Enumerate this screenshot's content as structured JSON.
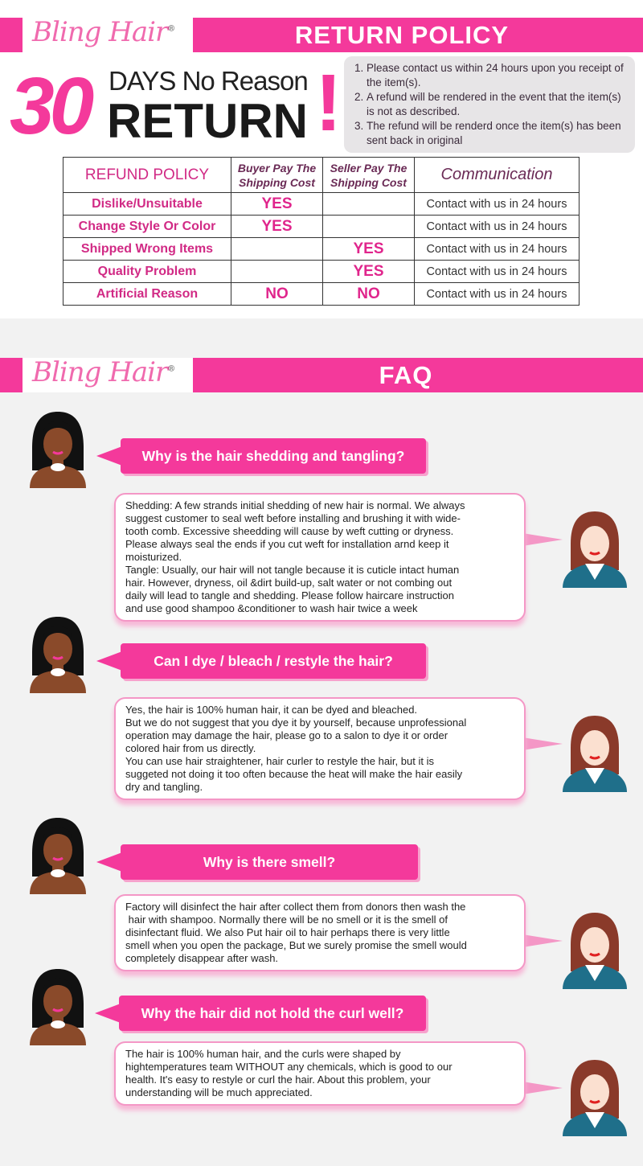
{
  "brand": {
    "name": "Bling Hair",
    "reg": "®"
  },
  "return_header": "RETURN POLICY",
  "hero": {
    "number": "30",
    "line1": "DAYS No Reason",
    "line2": "RETURN",
    "mark": "!"
  },
  "policy_points": [
    "Please contact us within 24 hours upon you receipt of the item(s).",
    "A refund will be rendered in the event that the item(s) is not as described.",
    "The refund will be renderd once the item(s) has been sent back in original"
  ],
  "table": {
    "headers": [
      "REFUND POLICY",
      "Buyer Pay The Shipping Cost",
      "Seller Pay The Shipping Cost",
      "Communication"
    ],
    "rows": [
      [
        "Dislike/Unsuitable",
        "YES",
        "",
        "Contact with us in 24 hours"
      ],
      [
        "Change Style Or Color",
        "YES",
        "",
        "Contact with us in 24 hours"
      ],
      [
        "Shipped Wrong Items",
        "",
        "YES",
        "Contact with us in 24 hours"
      ],
      [
        "Quality Problem",
        "",
        "YES",
        "Contact with us in 24 hours"
      ],
      [
        "Artificial Reason",
        "NO",
        "NO",
        "Contact with us in 24 hours"
      ]
    ]
  },
  "faq_header": "FAQ",
  "faq": [
    {
      "q": "Why is the hair shedding and tangling?",
      "a": "Shedding: A few strands initial shedding of new hair is normal. We always\nsuggest customer to seal weft before installing and brushing it with wide-\ntooth comb. Excessive sheedding will cause by weft cutting or dryness.\nPlease always seal the ends if you cut weft for installation arnd keep it\nmoisturized.\nTangle: Usually, our hair will not tangle because it is cuticle intact human\nhair. However, dryness, oil &dirt build-up, salt water or not combing out\ndaily will lead to tangle and shedding. Please follow haircare instruction\nand use good shampoo &conditioner to wash hair twice a week"
    },
    {
      "q": "Can I dye / bleach / restyle the hair?",
      "a": "Yes, the hair is 100% human hair, it can be dyed and bleached.\nBut we do not suggest that you dye it by yourself, because unprofessional\noperation may damage the hair, please go to a salon to dye it or order\ncolored hair from us directly.\nYou can use hair straightener, hair curler to restyle the hair, but it is\nsuggeted not doing it too often because the heat will make the hair easily\ndry and tangling."
    },
    {
      "q": "Why is there smell?",
      "a": "Factory will disinfect the hair after collect them from donors then wash the\n hair with shampoo. Normally there will be no smell or it is the smell of\ndisinfectant fluid. We also Put hair oil to hair perhaps there is very little\nsmell when you open the package, But we surely promise the smell would\ncompletely disappear after wash."
    },
    {
      "q": "Why the hair did not hold the curl well?",
      "a": "The hair is 100% human hair, and the curls were shaped by\nhightemperatures team WITHOUT any chemicals, which is good to our\nhealth. It's easy to restyle or curl the hair. About this problem, your\nunderstanding will be much appreciated."
    }
  ],
  "colors": {
    "accent": "#f4399b",
    "bubble_border": "#f497c6",
    "policy_bg": "#e7e5e7",
    "section_bg": "#f2f2f2"
  }
}
